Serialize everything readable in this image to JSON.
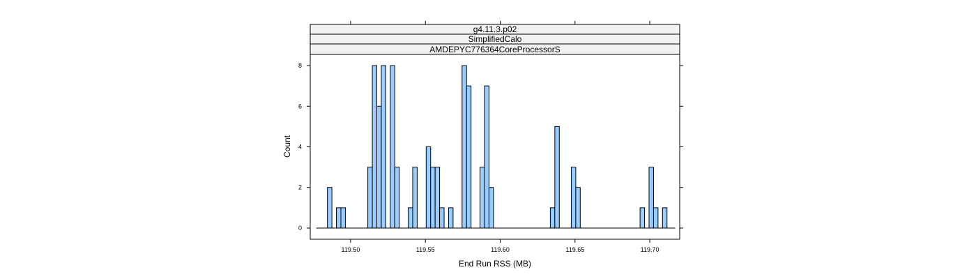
{
  "chart_data": {
    "type": "bar",
    "subtype": "histogram",
    "strips": [
      "g4.11.3.p02",
      "SimplifiedCalo",
      "AMDEPYC776364CoreProcessorS"
    ],
    "xlabel": "End Run RSS (MB)",
    "ylabel": "Count",
    "xlim": [
      119.473,
      119.72
    ],
    "ylim": [
      -0.55,
      8.55
    ],
    "baseline_range": [
      119.477,
      119.717
    ],
    "bin_width": 0.003,
    "x_ticks": [
      119.5,
      119.55,
      119.6,
      119.65,
      119.7
    ],
    "x_tick_labels": [
      "119.50",
      "119.55",
      "119.60",
      "119.65",
      "119.70"
    ],
    "y_ticks": [
      0,
      2,
      4,
      6,
      8
    ],
    "y_tick_labels": [
      "0",
      "2",
      "4",
      "6",
      "8"
    ],
    "bins": [
      {
        "x": 119.486,
        "count": 2
      },
      {
        "x": 119.492,
        "count": 1
      },
      {
        "x": 119.495,
        "count": 1
      },
      {
        "x": 119.513,
        "count": 3
      },
      {
        "x": 119.516,
        "count": 8
      },
      {
        "x": 119.519,
        "count": 6
      },
      {
        "x": 119.522,
        "count": 8
      },
      {
        "x": 119.528,
        "count": 8
      },
      {
        "x": 119.531,
        "count": 3
      },
      {
        "x": 119.54,
        "count": 1
      },
      {
        "x": 119.543,
        "count": 3
      },
      {
        "x": 119.552,
        "count": 4
      },
      {
        "x": 119.555,
        "count": 3
      },
      {
        "x": 119.558,
        "count": 3
      },
      {
        "x": 119.561,
        "count": 1
      },
      {
        "x": 119.567,
        "count": 1
      },
      {
        "x": 119.576,
        "count": 8
      },
      {
        "x": 119.579,
        "count": 7
      },
      {
        "x": 119.588,
        "count": 3
      },
      {
        "x": 119.591,
        "count": 7
      },
      {
        "x": 119.594,
        "count": 2
      },
      {
        "x": 119.635,
        "count": 1
      },
      {
        "x": 119.638,
        "count": 5
      },
      {
        "x": 119.649,
        "count": 3
      },
      {
        "x": 119.652,
        "count": 2
      },
      {
        "x": 119.695,
        "count": 1
      },
      {
        "x": 119.701,
        "count": 3
      },
      {
        "x": 119.704,
        "count": 1
      },
      {
        "x": 119.71,
        "count": 1
      }
    ],
    "colors": {
      "bar_fill": "#99ccff",
      "bar_stroke": "#000000",
      "strip_fill": "#f2f2f2",
      "frame": "#000000"
    },
    "grid": false,
    "legend": "none"
  }
}
